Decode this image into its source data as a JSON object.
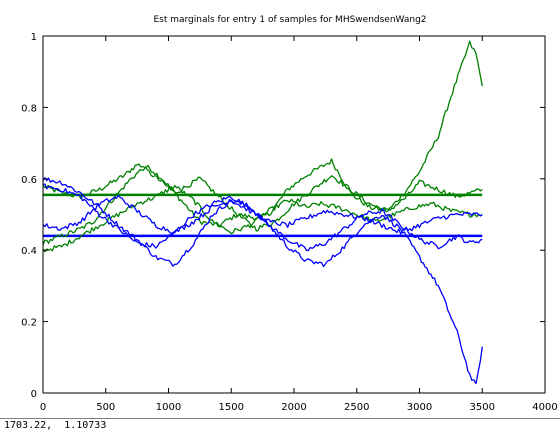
{
  "status_bar": {
    "coordinates": "1703.22,  1.10733"
  },
  "colors": {
    "series_a": "#008000",
    "series_b": "#0000ff",
    "axes": "#000000",
    "background": "#ffffff"
  },
  "chart_data": {
    "type": "line",
    "title": "Est marginals for entry 1 of samples for MHSwendsenWang2",
    "xlabel": "",
    "ylabel": "",
    "xlim": [
      0,
      4000
    ],
    "ylim": [
      0,
      1
    ],
    "xticks": [
      0,
      500,
      1000,
      1500,
      2000,
      2500,
      3000,
      3500,
      4000
    ],
    "yticks": [
      0,
      0.2,
      0.4,
      0.6,
      0.8,
      1
    ],
    "ytick_labels": [
      "0",
      "0.2",
      "0.4",
      "0.6",
      "0.8",
      "1"
    ],
    "grid": false,
    "legend": "none",
    "reference_lines": [
      {
        "color": "#008000",
        "y": 0.555,
        "x_range": [
          0,
          3500
        ]
      },
      {
        "color": "#0000ff",
        "y": 0.44,
        "x_range": [
          0,
          3500
        ]
      }
    ],
    "series": [
      {
        "color": "#008000",
        "x": [
          0,
          150,
          300,
          450,
          550,
          650,
          750,
          850,
          950,
          1100,
          1250,
          1400,
          1550,
          1700,
          1800,
          1950,
          2100,
          2250,
          2300,
          2450,
          2600,
          2750,
          2900,
          3000,
          3150,
          3250,
          3350,
          3400,
          3450,
          3500
        ],
        "y": [
          0.58,
          0.56,
          0.55,
          0.57,
          0.59,
          0.61,
          0.64,
          0.63,
          0.6,
          0.54,
          0.48,
          0.47,
          0.5,
          0.49,
          0.5,
          0.57,
          0.61,
          0.64,
          0.65,
          0.56,
          0.52,
          0.51,
          0.57,
          0.62,
          0.72,
          0.83,
          0.93,
          0.98,
          0.95,
          0.86
        ]
      },
      {
        "color": "#008000",
        "x": [
          0,
          150,
          300,
          400,
          500,
          600,
          700,
          800,
          950,
          1050,
          1150,
          1250,
          1400,
          1550,
          1700,
          1850,
          2000,
          2150,
          2300,
          2450,
          2600,
          2750,
          2900,
          3000,
          3150,
          3300,
          3400,
          3500
        ],
        "y": [
          0.42,
          0.44,
          0.46,
          0.48,
          0.52,
          0.56,
          0.6,
          0.63,
          0.59,
          0.56,
          0.58,
          0.6,
          0.55,
          0.5,
          0.46,
          0.48,
          0.53,
          0.57,
          0.61,
          0.57,
          0.53,
          0.51,
          0.55,
          0.59,
          0.57,
          0.55,
          0.56,
          0.57
        ]
      },
      {
        "color": "#008000",
        "x": [
          0,
          150,
          300,
          450,
          600,
          750,
          900,
          1050,
          1200,
          1350,
          1500,
          1650,
          1800,
          1950,
          2100,
          2200,
          2350,
          2500,
          2650,
          2800,
          2950,
          3100,
          3250,
          3400,
          3500
        ],
        "y": [
          0.4,
          0.41,
          0.44,
          0.47,
          0.5,
          0.53,
          0.55,
          0.58,
          0.54,
          0.48,
          0.45,
          0.47,
          0.51,
          0.54,
          0.52,
          0.53,
          0.52,
          0.5,
          0.48,
          0.5,
          0.52,
          0.53,
          0.51,
          0.5,
          0.5
        ]
      },
      {
        "color": "#0000ff",
        "x": [
          0,
          150,
          300,
          450,
          600,
          750,
          900,
          1050,
          1200,
          1350,
          1500,
          1650,
          1800,
          1950,
          2100,
          2250,
          2400,
          2550,
          2700,
          2850,
          3000,
          3150,
          3300,
          3400,
          3450,
          3500
        ],
        "y": [
          0.6,
          0.59,
          0.56,
          0.52,
          0.47,
          0.43,
          0.38,
          0.36,
          0.42,
          0.5,
          0.54,
          0.52,
          0.47,
          0.41,
          0.37,
          0.36,
          0.41,
          0.47,
          0.5,
          0.46,
          0.38,
          0.3,
          0.17,
          0.05,
          0.02,
          0.13
        ]
      },
      {
        "color": "#0000ff",
        "x": [
          0,
          150,
          300,
          450,
          600,
          750,
          900,
          1050,
          1200,
          1350,
          1500,
          1650,
          1800,
          1950,
          2100,
          2250,
          2400,
          2550,
          2700,
          2850,
          3000,
          3150,
          3300,
          3400,
          3500
        ],
        "y": [
          0.58,
          0.57,
          0.55,
          0.5,
          0.46,
          0.42,
          0.41,
          0.45,
          0.5,
          0.53,
          0.55,
          0.52,
          0.47,
          0.43,
          0.4,
          0.42,
          0.46,
          0.5,
          0.51,
          0.47,
          0.43,
          0.41,
          0.44,
          0.42,
          0.43
        ]
      },
      {
        "color": "#0000ff",
        "x": [
          0,
          150,
          300,
          450,
          600,
          750,
          900,
          1050,
          1200,
          1350,
          1500,
          1650,
          1800,
          1950,
          2100,
          2250,
          2400,
          2550,
          2700,
          2850,
          3000,
          3150,
          3300,
          3400,
          3500
        ],
        "y": [
          0.47,
          0.46,
          0.48,
          0.53,
          0.55,
          0.51,
          0.47,
          0.45,
          0.48,
          0.52,
          0.54,
          0.51,
          0.48,
          0.47,
          0.49,
          0.51,
          0.5,
          0.49,
          0.47,
          0.45,
          0.47,
          0.49,
          0.5,
          0.5,
          0.5
        ]
      }
    ]
  }
}
